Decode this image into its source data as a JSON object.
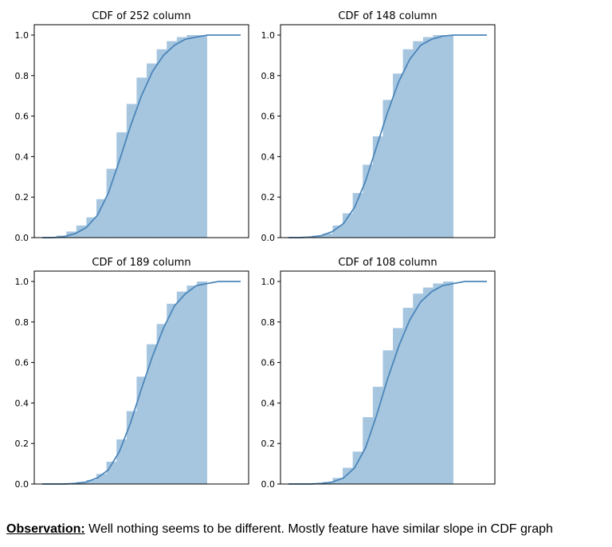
{
  "chart_data": [
    {
      "type": "histogram-with-line",
      "title": "CDF of 252 column",
      "ylim": [
        0,
        1.0
      ],
      "yticks": [
        "0.0",
        "0.2",
        "0.4",
        "0.6",
        "0.8",
        "1.0"
      ],
      "bars": [
        0.0,
        0.01,
        0.03,
        0.06,
        0.1,
        0.19,
        0.34,
        0.52,
        0.66,
        0.79,
        0.86,
        0.93,
        0.97,
        0.99,
        1.0,
        1.0
      ],
      "cdf_curve": [
        0.0,
        0.0,
        0.005,
        0.02,
        0.05,
        0.11,
        0.22,
        0.38,
        0.55,
        0.7,
        0.82,
        0.9,
        0.95,
        0.98,
        0.99,
        1.0,
        1.0,
        1.0,
        1.0
      ],
      "colors": {
        "bar": "#a6c6e0",
        "line": "#4c86b9"
      }
    },
    {
      "type": "histogram-with-line",
      "title": "CDF of 148 column",
      "ylim": [
        0,
        1.0
      ],
      "yticks": [
        "0.0",
        "0.2",
        "0.4",
        "0.6",
        "0.8",
        "1.0"
      ],
      "bars": [
        0.0,
        0.0,
        0.01,
        0.02,
        0.06,
        0.12,
        0.22,
        0.36,
        0.5,
        0.68,
        0.81,
        0.93,
        0.97,
        0.99,
        1.0,
        1.0
      ],
      "cdf_curve": [
        0.0,
        0.0,
        0.003,
        0.01,
        0.03,
        0.07,
        0.15,
        0.28,
        0.45,
        0.62,
        0.77,
        0.88,
        0.95,
        0.98,
        0.995,
        1.0,
        1.0,
        1.0,
        1.0
      ],
      "colors": {
        "bar": "#a6c6e0",
        "line": "#4c86b9"
      }
    },
    {
      "type": "histogram-with-line",
      "title": "CDF of 189 column",
      "ylim": [
        0,
        1.0
      ],
      "yticks": [
        "0.0",
        "0.2",
        "0.4",
        "0.6",
        "0.8",
        "1.0"
      ],
      "bars": [
        0.0,
        0.0,
        0.0,
        0.01,
        0.02,
        0.05,
        0.11,
        0.22,
        0.36,
        0.53,
        0.69,
        0.79,
        0.89,
        0.95,
        0.98,
        1.0
      ],
      "cdf_curve": [
        0.0,
        0.0,
        0.0,
        0.003,
        0.01,
        0.03,
        0.07,
        0.16,
        0.3,
        0.47,
        0.63,
        0.77,
        0.88,
        0.94,
        0.98,
        0.99,
        1.0,
        1.0,
        1.0
      ],
      "colors": {
        "bar": "#a6c6e0",
        "line": "#4c86b9"
      }
    },
    {
      "type": "histogram-with-line",
      "title": "CDF of 108 column",
      "ylim": [
        0,
        1.0
      ],
      "yticks": [
        "0.0",
        "0.2",
        "0.4",
        "0.6",
        "0.8",
        "1.0"
      ],
      "bars": [
        0.0,
        0.0,
        0.0,
        0.01,
        0.03,
        0.08,
        0.16,
        0.33,
        0.48,
        0.66,
        0.77,
        0.87,
        0.94,
        0.97,
        0.99,
        1.0
      ],
      "cdf_curve": [
        0.0,
        0.0,
        0.0,
        0.003,
        0.01,
        0.03,
        0.08,
        0.18,
        0.34,
        0.52,
        0.68,
        0.81,
        0.9,
        0.95,
        0.98,
        0.99,
        1.0,
        1.0,
        1.0
      ],
      "colors": {
        "bar": "#a6c6e0",
        "line": "#4c86b9"
      }
    }
  ],
  "observation": {
    "label": "Observation:",
    "text": " Well nothing seems to be different. Mostly feature have similar slope in CDF graph"
  }
}
